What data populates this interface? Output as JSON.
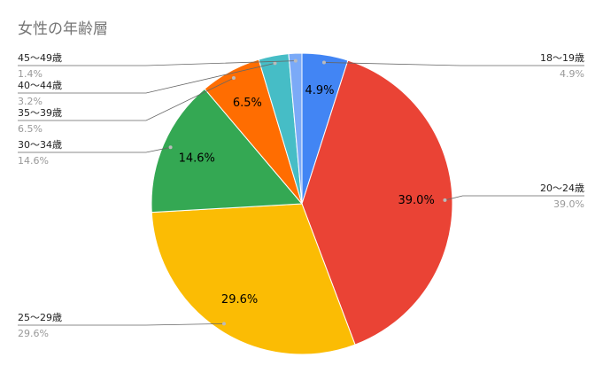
{
  "chart_data": {
    "type": "pie",
    "title": "女性の年齢層",
    "categories": [
      "18〜19歳",
      "20〜24歳",
      "25〜29歳",
      "30〜34歳",
      "35〜39歳",
      "40〜44歳",
      "45〜49歳"
    ],
    "values": [
      4.9,
      39.0,
      29.6,
      14.6,
      6.5,
      3.2,
      1.4
    ],
    "value_labels": [
      "4.9%",
      "39.0%",
      "29.6%",
      "14.6%",
      "6.5%",
      "3.2%",
      "1.4%"
    ],
    "colors": [
      "#4285f4",
      "#ea4335",
      "#fbbc04",
      "#34a853",
      "#ff6d01",
      "#46bdc6",
      "#7baaf7",
      "#f6b26b"
    ]
  }
}
